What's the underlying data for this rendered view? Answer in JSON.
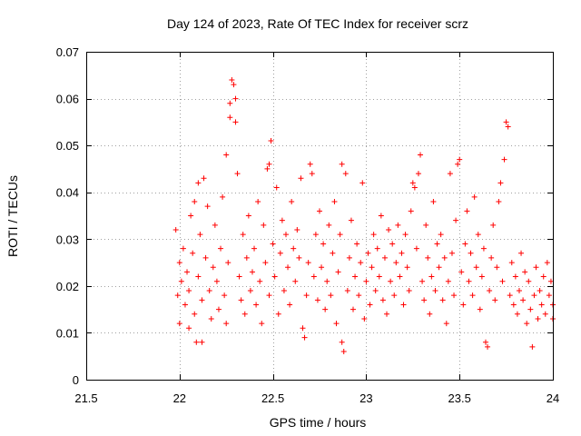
{
  "chart_data": {
    "type": "scatter",
    "title": "Day 124 of 2023, Rate Of TEC Index for receiver scrz",
    "xlabel": "GPS time / hours",
    "ylabel": "ROTI / TECUs",
    "xlim": [
      21.5,
      24
    ],
    "ylim": [
      0,
      0.07
    ],
    "xticks": [
      21.5,
      22,
      22.5,
      23,
      23.5,
      24
    ],
    "xtick_labels": [
      "21.5",
      "22",
      "22.5",
      "23",
      "23.5",
      "24"
    ],
    "yticks": [
      0,
      0.01,
      0.02,
      0.03,
      0.04,
      0.05,
      0.06,
      0.07
    ],
    "ytick_labels": [
      "0",
      "0.01",
      "0.02",
      "0.03",
      "0.04",
      "0.05",
      "0.06",
      "0.07"
    ],
    "grid": true,
    "marker": "plus",
    "color": "#ff0000",
    "series": [
      {
        "name": "ROTI",
        "points": [
          [
            21.98,
            0.032
          ],
          [
            21.99,
            0.018
          ],
          [
            22.0,
            0.025
          ],
          [
            22.0,
            0.012
          ],
          [
            22.01,
            0.021
          ],
          [
            22.02,
            0.028
          ],
          [
            22.03,
            0.016
          ],
          [
            22.04,
            0.023
          ],
          [
            22.05,
            0.011
          ],
          [
            22.05,
            0.019
          ],
          [
            22.06,
            0.035
          ],
          [
            22.07,
            0.027
          ],
          [
            22.08,
            0.038
          ],
          [
            22.08,
            0.014
          ],
          [
            22.09,
            0.008
          ],
          [
            22.1,
            0.042
          ],
          [
            22.1,
            0.022
          ],
          [
            22.11,
            0.031
          ],
          [
            22.12,
            0.008
          ],
          [
            22.12,
            0.017
          ],
          [
            22.13,
            0.043
          ],
          [
            22.14,
            0.026
          ],
          [
            22.15,
            0.037
          ],
          [
            22.16,
            0.019
          ],
          [
            22.17,
            0.013
          ],
          [
            22.18,
            0.024
          ],
          [
            22.19,
            0.033
          ],
          [
            22.2,
            0.021
          ],
          [
            22.21,
            0.015
          ],
          [
            22.22,
            0.028
          ],
          [
            22.23,
            0.039
          ],
          [
            22.24,
            0.018
          ],
          [
            22.25,
            0.012
          ],
          [
            22.25,
            0.048
          ],
          [
            22.26,
            0.025
          ],
          [
            22.27,
            0.059
          ],
          [
            22.27,
            0.056
          ],
          [
            22.28,
            0.064
          ],
          [
            22.29,
            0.063
          ],
          [
            22.3,
            0.06
          ],
          [
            22.3,
            0.055
          ],
          [
            22.31,
            0.044
          ],
          [
            22.32,
            0.022
          ],
          [
            22.33,
            0.017
          ],
          [
            22.34,
            0.031
          ],
          [
            22.35,
            0.014
          ],
          [
            22.36,
            0.026
          ],
          [
            22.37,
            0.035
          ],
          [
            22.38,
            0.019
          ],
          [
            22.39,
            0.023
          ],
          [
            22.4,
            0.028
          ],
          [
            22.41,
            0.016
          ],
          [
            22.42,
            0.038
          ],
          [
            22.43,
            0.021
          ],
          [
            22.44,
            0.012
          ],
          [
            22.45,
            0.033
          ],
          [
            22.46,
            0.025
          ],
          [
            22.47,
            0.045
          ],
          [
            22.48,
            0.018
          ],
          [
            22.48,
            0.046
          ],
          [
            22.49,
            0.051
          ],
          [
            22.5,
            0.029
          ],
          [
            22.51,
            0.022
          ],
          [
            22.52,
            0.041
          ],
          [
            22.53,
            0.014
          ],
          [
            22.54,
            0.027
          ],
          [
            22.55,
            0.034
          ],
          [
            22.56,
            0.019
          ],
          [
            22.57,
            0.031
          ],
          [
            22.58,
            0.024
          ],
          [
            22.59,
            0.016
          ],
          [
            22.6,
            0.038
          ],
          [
            22.61,
            0.028
          ],
          [
            22.62,
            0.021
          ],
          [
            22.63,
            0.032
          ],
          [
            22.64,
            0.026
          ],
          [
            22.65,
            0.043
          ],
          [
            22.66,
            0.011
          ],
          [
            22.67,
            0.009
          ],
          [
            22.68,
            0.018
          ],
          [
            22.69,
            0.025
          ],
          [
            22.7,
            0.046
          ],
          [
            22.71,
            0.044
          ],
          [
            22.72,
            0.022
          ],
          [
            22.73,
            0.031
          ],
          [
            22.74,
            0.017
          ],
          [
            22.75,
            0.036
          ],
          [
            22.76,
            0.024
          ],
          [
            22.77,
            0.029
          ],
          [
            22.78,
            0.015
          ],
          [
            22.79,
            0.021
          ],
          [
            22.8,
            0.033
          ],
          [
            22.81,
            0.018
          ],
          [
            22.82,
            0.027
          ],
          [
            22.83,
            0.038
          ],
          [
            22.84,
            0.012
          ],
          [
            22.85,
            0.023
          ],
          [
            22.86,
            0.031
          ],
          [
            22.87,
            0.046
          ],
          [
            22.87,
            0.008
          ],
          [
            22.88,
            0.006
          ],
          [
            22.89,
            0.044
          ],
          [
            22.9,
            0.019
          ],
          [
            22.91,
            0.026
          ],
          [
            22.92,
            0.034
          ],
          [
            22.93,
            0.015
          ],
          [
            22.94,
            0.022
          ],
          [
            22.95,
            0.029
          ],
          [
            22.96,
            0.018
          ],
          [
            22.97,
            0.025
          ],
          [
            22.98,
            0.042
          ],
          [
            22.99,
            0.013
          ],
          [
            23.0,
            0.021
          ],
          [
            23.01,
            0.027
          ],
          [
            23.02,
            0.016
          ],
          [
            23.03,
            0.024
          ],
          [
            23.04,
            0.031
          ],
          [
            23.05,
            0.019
          ],
          [
            23.06,
            0.028
          ],
          [
            23.07,
            0.022
          ],
          [
            23.08,
            0.035
          ],
          [
            23.09,
            0.017
          ],
          [
            23.1,
            0.026
          ],
          [
            23.11,
            0.014
          ],
          [
            23.12,
            0.032
          ],
          [
            23.13,
            0.021
          ],
          [
            23.14,
            0.029
          ],
          [
            23.15,
            0.018
          ],
          [
            23.16,
            0.025
          ],
          [
            23.17,
            0.033
          ],
          [
            23.18,
            0.022
          ],
          [
            23.19,
            0.027
          ],
          [
            23.2,
            0.016
          ],
          [
            23.21,
            0.031
          ],
          [
            23.22,
            0.024
          ],
          [
            23.23,
            0.019
          ],
          [
            23.24,
            0.036
          ],
          [
            23.25,
            0.042
          ],
          [
            23.26,
            0.041
          ],
          [
            23.27,
            0.028
          ],
          [
            23.28,
            0.044
          ],
          [
            23.29,
            0.048
          ],
          [
            23.3,
            0.021
          ],
          [
            23.31,
            0.017
          ],
          [
            23.32,
            0.033
          ],
          [
            23.33,
            0.026
          ],
          [
            23.34,
            0.014
          ],
          [
            23.35,
            0.022
          ],
          [
            23.36,
            0.038
          ],
          [
            23.37,
            0.019
          ],
          [
            23.38,
            0.029
          ],
          [
            23.39,
            0.024
          ],
          [
            23.4,
            0.031
          ],
          [
            23.41,
            0.017
          ],
          [
            23.42,
            0.026
          ],
          [
            23.43,
            0.012
          ],
          [
            23.44,
            0.021
          ],
          [
            23.45,
            0.044
          ],
          [
            23.46,
            0.027
          ],
          [
            23.47,
            0.018
          ],
          [
            23.48,
            0.034
          ],
          [
            23.49,
            0.046
          ],
          [
            23.5,
            0.047
          ],
          [
            23.51,
            0.023
          ],
          [
            23.52,
            0.016
          ],
          [
            23.53,
            0.029
          ],
          [
            23.54,
            0.036
          ],
          [
            23.55,
            0.021
          ],
          [
            23.56,
            0.027
          ],
          [
            23.57,
            0.018
          ],
          [
            23.58,
            0.039
          ],
          [
            23.59,
            0.024
          ],
          [
            23.6,
            0.031
          ],
          [
            23.61,
            0.015
          ],
          [
            23.62,
            0.022
          ],
          [
            23.63,
            0.028
          ],
          [
            23.64,
            0.008
          ],
          [
            23.65,
            0.007
          ],
          [
            23.66,
            0.019
          ],
          [
            23.67,
            0.026
          ],
          [
            23.68,
            0.033
          ],
          [
            23.69,
            0.017
          ],
          [
            23.7,
            0.024
          ],
          [
            23.71,
            0.038
          ],
          [
            23.72,
            0.042
          ],
          [
            23.73,
            0.021
          ],
          [
            23.74,
            0.047
          ],
          [
            23.75,
            0.055
          ],
          [
            23.76,
            0.054
          ],
          [
            23.77,
            0.018
          ],
          [
            23.78,
            0.025
          ],
          [
            23.79,
            0.016
          ],
          [
            23.8,
            0.022
          ],
          [
            23.81,
            0.014
          ],
          [
            23.82,
            0.019
          ],
          [
            23.83,
            0.027
          ],
          [
            23.84,
            0.017
          ],
          [
            23.85,
            0.023
          ],
          [
            23.86,
            0.012
          ],
          [
            23.87,
            0.021
          ],
          [
            23.88,
            0.015
          ],
          [
            23.89,
            0.007
          ],
          [
            23.9,
            0.018
          ],
          [
            23.91,
            0.024
          ],
          [
            23.92,
            0.013
          ],
          [
            23.93,
            0.019
          ],
          [
            23.94,
            0.016
          ],
          [
            23.95,
            0.022
          ],
          [
            23.96,
            0.014
          ],
          [
            23.97,
            0.025
          ],
          [
            23.98,
            0.018
          ],
          [
            23.99,
            0.021
          ],
          [
            24.0,
            0.016
          ],
          [
            24.0,
            0.013
          ]
        ]
      }
    ]
  }
}
